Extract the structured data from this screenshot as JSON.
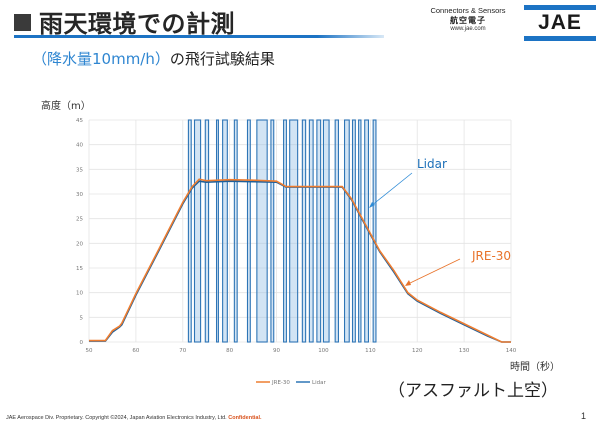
{
  "slide": {
    "title": "雨天環境での計測",
    "subtitle_paren": "（降水量10mm/h）",
    "subtitle_rest": "の飛行試験結果",
    "caption": "（アスファルト上空）",
    "footer_text": "JAE Aerospace Div. Proprietary. Copyright ©2024, Japan Aviation Electronics Industry, Ltd. ",
    "footer_confidential": "Confidential.",
    "page_number": "1"
  },
  "brand": {
    "tagline": "Connectors & Sensors",
    "kanji": "航空電子",
    "url": "www.jae.com",
    "logo": "JAE",
    "color": "#1c73c4"
  },
  "annotations": {
    "lidar_label": "Lidar",
    "jre_label": "JRE-30",
    "lidar_color": "#1c6fb8",
    "jre_color": "#e8732a"
  },
  "chart_data": {
    "type": "line",
    "title": "",
    "xlabel": "時間（秒）",
    "ylabel": "高度（m）",
    "xlim": [
      50,
      140
    ],
    "ylim": [
      0,
      45
    ],
    "x_ticks": [
      50,
      60,
      70,
      80,
      90,
      100,
      110,
      120,
      130,
      140
    ],
    "y_ticks": [
      0,
      5,
      10,
      15,
      20,
      25,
      30,
      35,
      40,
      45
    ],
    "grid": true,
    "legend_position": "bottom",
    "series": [
      {
        "name": "JRE-30",
        "color": "#ed7d31",
        "x": [
          50,
          53.5,
          55,
          56.5,
          57,
          60,
          65,
          70,
          72,
          73.5,
          75,
          80,
          85,
          90,
          92,
          95,
          100,
          104,
          106,
          108,
          110,
          112,
          115,
          118,
          120,
          125,
          130,
          135,
          138,
          140
        ],
        "y": [
          0.3,
          0.3,
          2.3,
          3.2,
          3.8,
          9.8,
          19.0,
          28.3,
          31.5,
          33.0,
          32.7,
          32.9,
          32.8,
          32.6,
          31.5,
          31.5,
          31.5,
          31.5,
          29.0,
          25.5,
          22.0,
          18.5,
          14.5,
          10.0,
          8.5,
          6.0,
          3.7,
          1.4,
          0.0,
          0.0
        ]
      },
      {
        "name": "Lidar",
        "color": "#2e75b6",
        "x": [
          50,
          53.5,
          55,
          56.5,
          57,
          60,
          65,
          70,
          72,
          73.5,
          75,
          80,
          85,
          90,
          92,
          95,
          100,
          104,
          106,
          108,
          110,
          112,
          115,
          118,
          120,
          125,
          130,
          135,
          138,
          140
        ],
        "y": [
          0.2,
          0.2,
          2.0,
          3.0,
          3.5,
          9.5,
          18.7,
          28.0,
          31.2,
          32.6,
          32.4,
          32.6,
          32.5,
          32.4,
          31.4,
          31.4,
          31.4,
          31.4,
          28.8,
          25.3,
          21.8,
          18.3,
          14.2,
          9.8,
          8.3,
          5.8,
          3.5,
          1.2,
          0.0,
          0.0
        ],
        "dropouts_note": "frequent spikes to 45 (max) and 0 between ~71s and ~111s due to rain"
      }
    ]
  }
}
